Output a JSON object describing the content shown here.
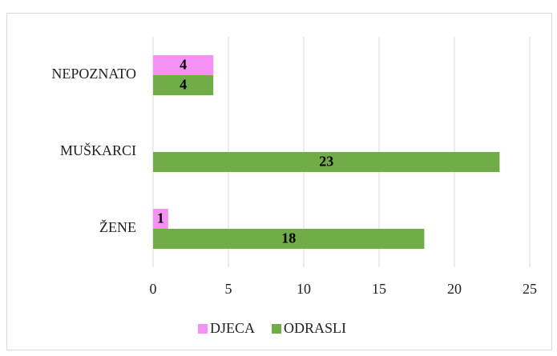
{
  "chart_data": {
    "type": "hbar",
    "categories": [
      "ŽENE",
      "MUŠKARCI",
      "NEPOZNATO"
    ],
    "series": [
      {
        "name": "DJECA",
        "color": "#f590f5",
        "values": [
          1,
          null,
          4
        ]
      },
      {
        "name": "ODRASLI",
        "color": "#70ad47",
        "values": [
          18,
          23,
          4
        ]
      }
    ],
    "xlim": [
      0,
      25
    ],
    "xticks": [
      0,
      5,
      10,
      15,
      20,
      25
    ],
    "grid": true,
    "legend": "bottom"
  }
}
